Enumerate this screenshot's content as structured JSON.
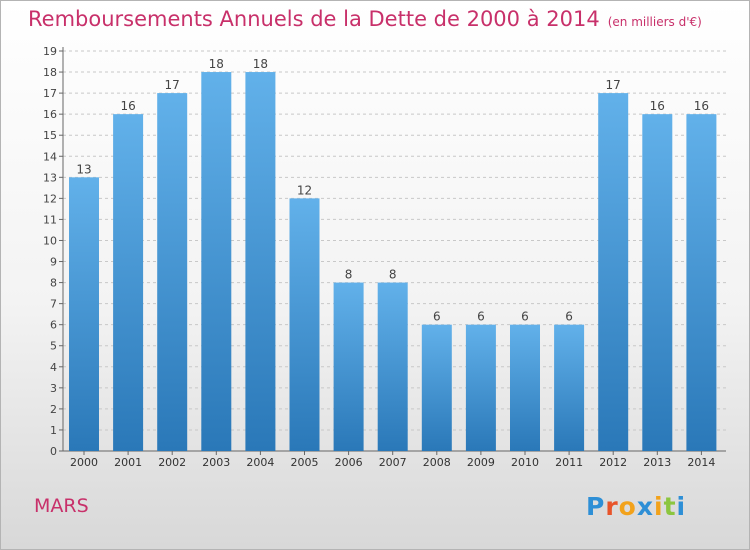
{
  "title": "Remboursements Annuels de la Dette de 2000 à 2014",
  "unit_note": "(en milliers d'€)",
  "place": "MARS",
  "brand": {
    "letters": [
      "P",
      "r",
      "o",
      "x",
      "i",
      "t",
      "i"
    ],
    "colors": [
      "#2e8fd6",
      "#e8542a",
      "#f2a21b",
      "#2e8fd6",
      "#f2a21b",
      "#8cc63f",
      "#2e8fd6"
    ]
  },
  "colors": {
    "title": "#c8306a",
    "bar_light": "#62b1ea",
    "bar_dark": "#2a78b8"
  },
  "chart_data": {
    "type": "bar",
    "categories": [
      "2000",
      "2001",
      "2002",
      "2003",
      "2004",
      "2005",
      "2006",
      "2007",
      "2008",
      "2009",
      "2010",
      "2011",
      "2012",
      "2013",
      "2014"
    ],
    "values": [
      13,
      16,
      17,
      18,
      18,
      12,
      8,
      8,
      6,
      6,
      6,
      6,
      17,
      16,
      16
    ],
    "title": "Remboursements Annuels de la Dette de 2000 à 2014",
    "xlabel": "",
    "ylabel": "",
    "ylim": [
      0,
      19
    ],
    "yticks": [
      0,
      1,
      2,
      3,
      4,
      5,
      6,
      7,
      8,
      9,
      10,
      11,
      12,
      13,
      14,
      15,
      16,
      17,
      18,
      19
    ],
    "data_labels": true,
    "grid": "horizontal dashed"
  }
}
